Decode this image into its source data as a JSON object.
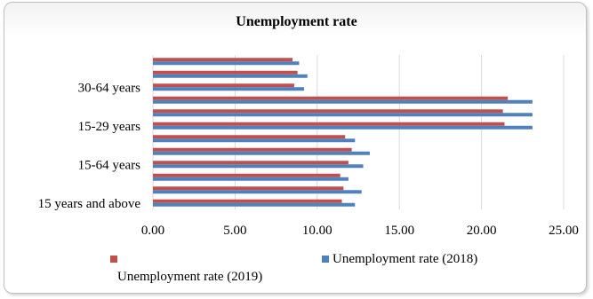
{
  "chart_data": {
    "type": "bar",
    "orientation": "horizontal",
    "title": "Unemployment rate",
    "categories": [
      "15 years and above",
      "",
      "",
      "15-64 years",
      "",
      "",
      "15-29 years",
      "",
      "",
      "30-64 years",
      "",
      ""
    ],
    "series": [
      {
        "name": "Unemployment rate (2019)",
        "color": "#c0504d",
        "values": [
          11.5,
          11.6,
          11.4,
          11.9,
          12.1,
          11.7,
          21.4,
          21.3,
          21.6,
          8.6,
          8.8,
          8.5
        ]
      },
      {
        "name": "Unemployment rate (2018)",
        "color": "#4f81bd",
        "values": [
          12.3,
          12.7,
          11.9,
          12.8,
          13.2,
          12.3,
          23.1,
          23.1,
          23.1,
          9.2,
          9.4,
          8.9
        ]
      }
    ],
    "x_ticks": [
      "0.00",
      "5.00",
      "10.00",
      "15.00",
      "20.00",
      "25.00"
    ],
    "xlim": [
      0,
      25
    ],
    "grid": true,
    "legend_position": "bottom"
  }
}
